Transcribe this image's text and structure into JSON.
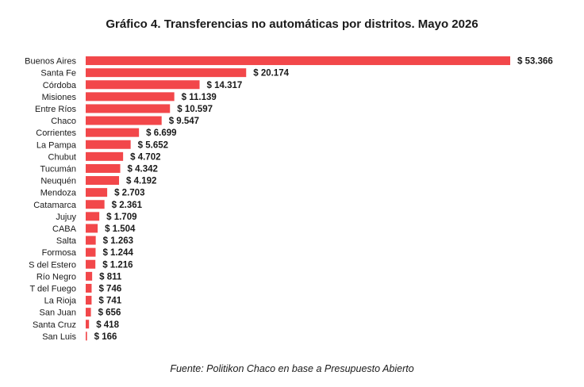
{
  "chart_data": {
    "type": "bar",
    "orientation": "horizontal",
    "title": "Gráfico 4. Transferencias no automáticas por distritos. Mayo 2026",
    "categories": [
      "Buenos Aires",
      "Santa Fe",
      "Córdoba",
      "Misiones",
      "Entre Ríos",
      "Chaco",
      "Corrientes",
      "La Pampa",
      "Chubut",
      "Tucumán",
      "Neuquén",
      "Mendoza",
      "Catamarca",
      "Jujuy",
      "CABA",
      "Salta",
      "Formosa",
      "S del Estero",
      "Río Negro",
      "T del Fuego",
      "La Rioja",
      "San Juan",
      "Santa Cruz",
      "San Luis"
    ],
    "values": [
      53366,
      20174,
      14317,
      11139,
      10597,
      9547,
      6699,
      5652,
      4702,
      4342,
      4192,
      2703,
      2361,
      1709,
      1504,
      1263,
      1244,
      1216,
      811,
      746,
      741,
      656,
      418,
      166
    ],
    "labels": [
      "$ 53.366",
      "$ 20.174",
      "$ 14.317",
      "$ 11.139",
      "$ 10.597",
      "$ 9.547",
      "$ 6.699",
      "$ 5.652",
      "$ 4.702",
      "$ 4.342",
      "$ 4.192",
      "$ 2.703",
      "$ 2.361",
      "$ 1.709",
      "$ 1.504",
      "$ 1.263",
      "$ 1.244",
      "$ 1.216",
      "$ 811",
      "$ 746",
      "$ 741",
      "$ 656",
      "$ 418",
      "$ 166"
    ],
    "bar_color": "#f2474a",
    "grid": false,
    "legend": "none"
  },
  "source": "Fuente: Politikon Chaco en base a Presupuesto Abierto"
}
